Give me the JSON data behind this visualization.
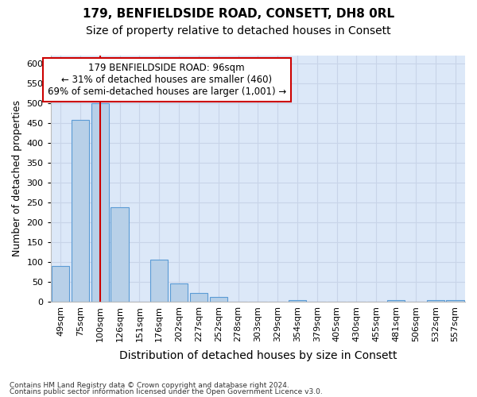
{
  "title1": "179, BENFIELDSIDE ROAD, CONSETT, DH8 0RL",
  "title2": "Size of property relative to detached houses in Consett",
  "xlabel": "Distribution of detached houses by size in Consett",
  "ylabel": "Number of detached properties",
  "categories": [
    "49sqm",
    "75sqm",
    "100sqm",
    "126sqm",
    "151sqm",
    "176sqm",
    "202sqm",
    "227sqm",
    "252sqm",
    "278sqm",
    "303sqm",
    "329sqm",
    "354sqm",
    "379sqm",
    "405sqm",
    "430sqm",
    "455sqm",
    "481sqm",
    "506sqm",
    "532sqm",
    "557sqm"
  ],
  "values": [
    89,
    458,
    500,
    237,
    0,
    105,
    46,
    21,
    11,
    0,
    0,
    0,
    3,
    0,
    0,
    0,
    0,
    3,
    0,
    3,
    3
  ],
  "bar_color": "#b8d0e8",
  "bar_edge_color": "#5b9bd5",
  "vline_x": 2.0,
  "vline_color": "#cc0000",
  "annotation_text": "179 BENFIELDSIDE ROAD: 96sqm\n← 31% of detached houses are smaller (460)\n69% of semi-detached houses are larger (1,001) →",
  "annotation_box_color": "#cc0000",
  "ylim": [
    0,
    620
  ],
  "yticks": [
    0,
    50,
    100,
    150,
    200,
    250,
    300,
    350,
    400,
    450,
    500,
    550,
    600
  ],
  "grid_color": "#c8d4e8",
  "bg_color": "#dce8f8",
  "footer1": "Contains HM Land Registry data © Crown copyright and database right 2024.",
  "footer2": "Contains public sector information licensed under the Open Government Licence v3.0.",
  "title1_fontsize": 11,
  "title2_fontsize": 10,
  "ylabel_fontsize": 9,
  "xlabel_fontsize": 10,
  "tick_fontsize": 8,
  "annot_fontsize": 8.5
}
